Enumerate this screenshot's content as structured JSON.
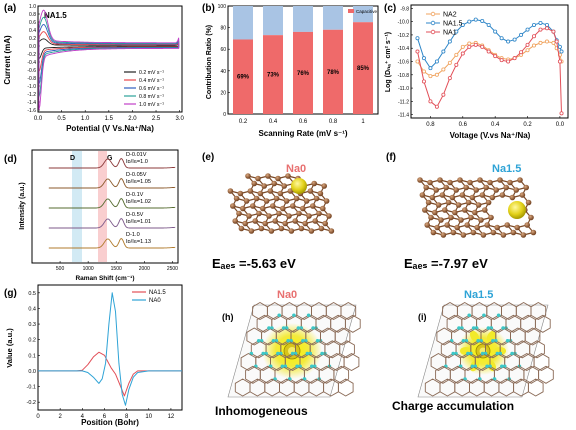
{
  "panels": {
    "a": {
      "label": "(a)",
      "tag": "NA1.5",
      "xlabel": "Potential (V Vs.Na⁺/Na)",
      "ylabel": "Current (mA)",
      "xticks": [
        "0.0",
        "0.5",
        "1.0",
        "1.5",
        "2.0",
        "2.5",
        "3.0"
      ],
      "yticks": [
        "1.0",
        "0.8",
        "0.6",
        "0.4",
        "0.2",
        "0.0",
        "-0.2",
        "-0.4",
        "-0.6",
        "-0.8",
        "-1.0",
        "-1.2",
        "-1.4",
        "-1.6"
      ],
      "legend": [
        "0.2 mV s⁻¹",
        "0.4 mV s⁻¹",
        "0.6 mV s⁻¹",
        "0.8 mV s⁻¹",
        "1.0 mV s⁻¹"
      ],
      "colors": [
        "#222222",
        "#e8464b",
        "#2f5fbf",
        "#2aa198",
        "#c13fc8"
      ]
    },
    "b": {
      "label": "(b)",
      "legend": "Capacitive",
      "xlabel": "Scanning Rate (mV s⁻¹)",
      "ylabel": "Contribution Ratio (%)",
      "yticks": [
        "0",
        "20",
        "40",
        "60",
        "80",
        "100"
      ]
    },
    "c": {
      "label": "(c)",
      "xlabel": "Voltage (V.vs Na⁺/Na)",
      "ylabel": "Log (Dₙₐ⁺ cm² s⁻¹)",
      "legend": [
        "NA2",
        "NA1.5",
        "NA1"
      ],
      "colors": [
        "#f0a35e",
        "#2e86c8",
        "#e24f58"
      ],
      "xticks": [
        "0.8",
        "0.6",
        "0.4",
        "0.2",
        "0.0"
      ],
      "yticks": [
        "-9.8",
        "-10.0",
        "-10.2",
        "-10.4",
        "-10.6",
        "-10.8",
        "-11.0",
        "-11.2",
        "-11.4"
      ]
    },
    "d": {
      "label": "(d)",
      "xlabel": "Raman Shift (cm⁻¹)",
      "ylabel": "Intensity (a.u.)",
      "D": "D",
      "G": "G",
      "xticks": [
        "500",
        "1000",
        "1500",
        "2000",
        "2500"
      ],
      "spectra": [
        {
          "name": "D-0.01V",
          "ratio": "Iᴅ/Iɢ=1.0"
        },
        {
          "name": "D-0.05V",
          "ratio": "Iᴅ/Iɢ=1.05"
        },
        {
          "name": "D-0.1V",
          "ratio": "Iᴅ/Iɢ=1.02"
        },
        {
          "name": "D-0.5V",
          "ratio": "Iᴅ/Iɢ=1.01"
        },
        {
          "name": "D-1.0",
          "ratio": "Iᴅ/Iɢ=1.13"
        }
      ]
    },
    "e": {
      "label": "(e)",
      "title": "Na0",
      "eads": "Eₐₑₛ =-5.63 eV"
    },
    "f": {
      "label": "(f)",
      "title": "Na1.5",
      "eads": "Eₐₑₛ =-7.97 eV"
    },
    "g": {
      "label": "(g)",
      "xlabel": "Position (Bohr)",
      "ylabel": "Value (a.u.)",
      "legend": [
        "NA1.5",
        "NA0"
      ],
      "colors": [
        "#e24f58",
        "#2ea3d6"
      ],
      "xticks": [
        "0",
        "2",
        "4",
        "6",
        "8",
        "10",
        "12"
      ],
      "yticks": [
        "0.5",
        "0.4",
        "0.3",
        "0.2",
        "0.1",
        "0.0",
        "-0.1",
        "-0.2"
      ]
    },
    "h": {
      "label": "(h)",
      "title": "Na0",
      "caption": "Inhomogeneous"
    },
    "i": {
      "label": "(i)",
      "title": "Na1.5",
      "caption": "Charge accumulation"
    }
  },
  "chart_data": [
    {
      "type": "line",
      "panel": "a",
      "xlabel": "Potential (V Vs.Na⁺/Na)",
      "ylabel": "Current (mA)",
      "xlim": [
        0,
        3.05
      ],
      "ylim": [
        -1.65,
        1.0
      ],
      "series": [
        {
          "name": "0.2 mV s⁻¹",
          "scale": 0.2
        },
        {
          "name": "0.4 mV s⁻¹",
          "scale": 0.4
        },
        {
          "name": "0.6 mV s⁻¹",
          "scale": 0.6
        },
        {
          "name": "0.8 mV s⁻¹",
          "scale": 0.8
        },
        {
          "name": "1.0 mV s⁻¹",
          "scale": 1.0
        }
      ]
    },
    {
      "type": "bar",
      "panel": "b",
      "categories": [
        "0.2",
        "0.4",
        "0.6",
        "0.8",
        "1"
      ],
      "series": [
        {
          "name": "Capacitive",
          "values": [
            69,
            73,
            76,
            78,
            85
          ]
        }
      ],
      "data_labels": [
        "69%",
        "73%",
        "76%",
        "78%",
        "85%"
      ],
      "ylim": [
        0,
        100
      ],
      "xlabel": "Scanning Rate (mV s⁻¹)",
      "ylabel": "Contribution Ratio (%)"
    },
    {
      "type": "line",
      "panel": "c",
      "xlim": [
        0.92,
        -0.05
      ],
      "ylim": [
        -11.45,
        -9.75
      ],
      "series": [
        {
          "name": "NA2",
          "x": [
            0.88,
            0.84,
            0.8,
            0.76,
            0.72,
            0.68,
            0.64,
            0.6,
            0.56,
            0.52,
            0.48,
            0.44,
            0.4,
            0.36,
            0.32,
            0.28,
            0.24,
            0.2,
            0.16,
            0.12,
            0.08,
            0.04,
            0.02,
            0.0,
            -0.01
          ],
          "y": [
            -10.6,
            -10.75,
            -10.82,
            -10.8,
            -10.72,
            -10.62,
            -10.5,
            -10.38,
            -10.33,
            -10.32,
            -10.36,
            -10.43,
            -10.5,
            -10.55,
            -10.57,
            -10.55,
            -10.5,
            -10.43,
            -10.36,
            -10.32,
            -10.3,
            -10.32,
            -10.4,
            -10.5,
            -10.6
          ]
        },
        {
          "name": "NA1.5",
          "x": [
            0.88,
            0.84,
            0.8,
            0.76,
            0.72,
            0.68,
            0.64,
            0.6,
            0.56,
            0.52,
            0.48,
            0.44,
            0.4,
            0.36,
            0.32,
            0.28,
            0.24,
            0.2,
            0.16,
            0.12,
            0.08,
            0.04,
            0.02,
            0.0,
            -0.01
          ],
          "y": [
            -10.25,
            -10.55,
            -10.7,
            -10.6,
            -10.45,
            -10.3,
            -10.15,
            -10.05,
            -10.0,
            -9.97,
            -9.99,
            -10.05,
            -10.15,
            -10.25,
            -10.3,
            -10.27,
            -10.2,
            -10.12,
            -10.05,
            -10.02,
            -10.05,
            -10.15,
            -10.28,
            -10.38,
            -10.45
          ]
        },
        {
          "name": "NA1",
          "x": [
            0.88,
            0.84,
            0.8,
            0.76,
            0.72,
            0.68,
            0.64,
            0.6,
            0.56,
            0.52,
            0.48,
            0.44,
            0.4,
            0.36,
            0.32,
            0.28,
            0.24,
            0.2,
            0.16,
            0.12,
            0.08,
            0.04,
            0.02,
            0.0,
            -0.01
          ],
          "y": [
            -10.45,
            -10.9,
            -11.2,
            -11.28,
            -11.1,
            -10.85,
            -10.65,
            -10.48,
            -10.38,
            -10.35,
            -10.38,
            -10.45,
            -10.52,
            -10.58,
            -10.6,
            -10.55,
            -10.46,
            -10.35,
            -10.22,
            -10.12,
            -10.1,
            -10.15,
            -10.3,
            -10.6,
            -11.38
          ]
        }
      ]
    },
    {
      "type": "line",
      "panel": "d",
      "xlim": [
        0,
        2500
      ],
      "peaks": {
        "D": 1350,
        "G": 1590
      }
    },
    {
      "type": "line",
      "panel": "g",
      "xlim": [
        0,
        13
      ],
      "ylim": [
        -0.25,
        0.55
      ],
      "series": [
        {
          "name": "NA1.5",
          "x": [
            0,
            3.5,
            4,
            4.5,
            5,
            5.5,
            6,
            6.3,
            6.6,
            7,
            7.4,
            7.8,
            8.2,
            8.6,
            9,
            10,
            13
          ],
          "y": [
            0,
            0,
            0.005,
            0.04,
            0.09,
            0.12,
            0.1,
            0.06,
            0.02,
            -0.02,
            -0.09,
            -0.16,
            -0.08,
            -0.02,
            0.0,
            0,
            0
          ]
        },
        {
          "name": "NA0",
          "x": [
            0,
            4,
            4.5,
            5,
            5.5,
            5.8,
            6.1,
            6.4,
            6.7,
            7.0,
            7.3,
            7.6,
            7.9,
            8.2,
            8.6,
            9,
            10,
            13
          ],
          "y": [
            0,
            0,
            -0.01,
            -0.04,
            -0.08,
            -0.05,
            0.05,
            0.3,
            0.5,
            0.38,
            0.05,
            -0.15,
            -0.22,
            -0.12,
            -0.04,
            -0.01,
            0,
            0
          ]
        }
      ]
    }
  ]
}
